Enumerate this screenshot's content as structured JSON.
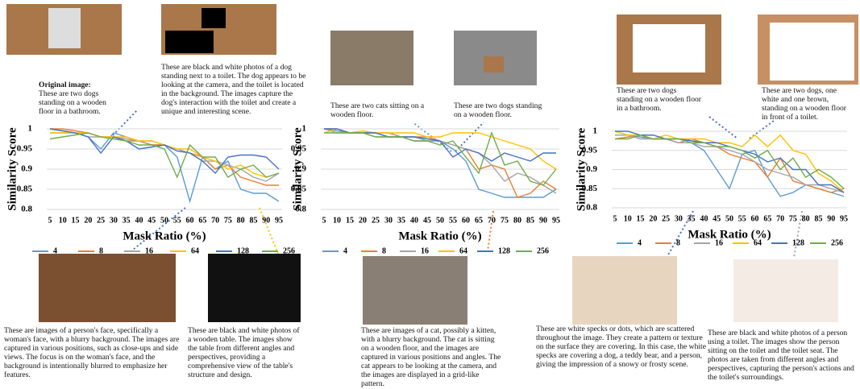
{
  "chart_data": [
    {
      "type": "line",
      "x_label": "Mask Ratio (%)",
      "y_label": "Similarity Score",
      "categories": [
        5,
        10,
        15,
        20,
        25,
        30,
        35,
        40,
        45,
        50,
        55,
        60,
        65,
        70,
        75,
        80,
        85,
        90,
        95
      ],
      "ylim": [
        0.8,
        1
      ],
      "yticks": [
        0.8,
        0.85,
        0.9,
        0.95,
        1
      ],
      "grid": true,
      "series": [
        {
          "name": "4",
          "color": "#5b9bd5",
          "values": [
            1,
            0.995,
            0.99,
            0.98,
            0.95,
            0.99,
            0.98,
            0.97,
            0.96,
            0.96,
            0.93,
            0.82,
            0.93,
            0.9,
            0.92,
            0.85,
            0.84,
            0.84,
            0.82
          ]
        },
        {
          "name": "8",
          "color": "#ed7d31",
          "values": [
            1,
            1,
            0.995,
            0.99,
            0.98,
            0.98,
            0.97,
            0.97,
            0.96,
            0.96,
            0.95,
            0.94,
            0.93,
            0.9,
            0.91,
            0.88,
            0.87,
            0.86,
            0.86
          ]
        },
        {
          "name": "16",
          "color": "#a5a5a5",
          "values": [
            0.99,
            0.99,
            0.99,
            0.98,
            0.98,
            0.98,
            0.975,
            0.97,
            0.97,
            0.96,
            0.95,
            0.94,
            0.92,
            0.92,
            0.91,
            0.9,
            0.88,
            0.87,
            0.89
          ]
        },
        {
          "name": "64",
          "color": "#ffc000",
          "values": [
            0.99,
            0.99,
            0.99,
            0.99,
            0.98,
            0.98,
            0.98,
            0.97,
            0.97,
            0.96,
            0.95,
            0.95,
            0.93,
            0.92,
            0.9,
            0.91,
            0.89,
            0.88,
            0.89
          ]
        },
        {
          "name": "128",
          "color": "#4472c4",
          "values": [
            1,
            0.995,
            0.99,
            0.98,
            0.94,
            0.98,
            0.97,
            0.95,
            0.955,
            0.96,
            0.945,
            0.94,
            0.92,
            0.89,
            0.93,
            0.935,
            0.935,
            0.93,
            0.9
          ]
        },
        {
          "name": "256",
          "color": "#70ad47",
          "values": [
            0.975,
            0.98,
            0.985,
            0.99,
            0.98,
            0.975,
            0.97,
            0.96,
            0.96,
            0.95,
            0.88,
            0.96,
            0.93,
            0.93,
            0.88,
            0.9,
            0.91,
            0.88,
            0.89
          ]
        }
      ],
      "annotations": [
        "Original image:",
        "These are two dogs standing on a wooden floor in a bathroom.",
        "These are black and white photos of a dog standing next to a toilet. The dog appears to be looking at the camera, and the toilet is located in the background. The images capture the dog's interaction with the toilet and create a unique and interesting scene.",
        "These are images of a person's face, specifically a woman's face, with a blurry background. The images are captured in various positions, such as close-ups and side views. The focus is on the woman's face, and the background is intentionally blurred to emphasize her features.",
        "These are black and white photos of a wooden table. The images show the table from different angles and perspectives, providing a comprehensive view of the table's structure and design."
      ]
    },
    {
      "type": "line",
      "x_label": "Mask Ratio (%)",
      "y_label": "Similarity Score",
      "categories": [
        5,
        10,
        15,
        20,
        25,
        30,
        35,
        40,
        45,
        50,
        55,
        60,
        65,
        70,
        75,
        80,
        85,
        90,
        95
      ],
      "ylim": [
        0.8,
        1
      ],
      "yticks": [
        0.8,
        0.85,
        0.9,
        0.95,
        1
      ],
      "grid": true,
      "series": [
        {
          "name": "4",
          "color": "#5b9bd5",
          "values": [
            1,
            0.995,
            0.99,
            0.99,
            0.99,
            0.98,
            0.98,
            0.97,
            0.97,
            0.97,
            0.95,
            0.92,
            0.85,
            0.84,
            0.83,
            0.83,
            0.83,
            0.83,
            0.85
          ]
        },
        {
          "name": "8",
          "color": "#ed7d31",
          "values": [
            1,
            1,
            0.99,
            0.99,
            0.99,
            0.99,
            0.98,
            0.98,
            0.98,
            0.97,
            0.96,
            0.95,
            0.9,
            0.91,
            0.9,
            0.83,
            0.84,
            0.87,
            0.85
          ]
        },
        {
          "name": "16",
          "color": "#a5a5a5",
          "values": [
            1,
            0.99,
            0.99,
            0.99,
            0.98,
            0.98,
            0.98,
            0.98,
            0.97,
            0.97,
            0.96,
            0.95,
            0.94,
            0.91,
            0.87,
            0.89,
            0.88,
            0.86,
            0.84
          ]
        },
        {
          "name": "64",
          "color": "#ffc000",
          "values": [
            0.99,
            1,
            0.99,
            0.995,
            0.99,
            0.99,
            0.99,
            0.99,
            0.98,
            0.98,
            0.99,
            0.99,
            0.99,
            0.98,
            0.97,
            0.96,
            0.95,
            0.92,
            0.9
          ]
        },
        {
          "name": "128",
          "color": "#4472c4",
          "values": [
            1,
            1,
            0.99,
            0.99,
            0.99,
            0.98,
            0.98,
            0.98,
            0.975,
            0.97,
            0.93,
            0.95,
            0.94,
            0.92,
            0.94,
            0.93,
            0.92,
            0.94,
            0.94
          ]
        },
        {
          "name": "256",
          "color": "#70ad47",
          "values": [
            0.99,
            0.99,
            0.99,
            0.99,
            0.98,
            0.98,
            0.98,
            0.97,
            0.97,
            0.96,
            0.97,
            0.93,
            0.89,
            0.99,
            0.91,
            0.92,
            0.87,
            0.86,
            0.9
          ]
        }
      ],
      "annotations": [
        "These are two cats sitting on a wooden floor.",
        "These are two dogs standing on a wooden floor.",
        "These are images of a cat, possibly a kitten, with a blurry background. The cat is sitting on a wooden floor, and the images are captured in various positions and angles. The cat appears to be looking at the camera, and the images are displayed in a grid-like pattern."
      ]
    },
    {
      "type": "line",
      "x_label": "Mask Ratio (%)",
      "y_label": "Similarity Score",
      "categories": [
        5,
        10,
        15,
        20,
        25,
        30,
        35,
        40,
        45,
        50,
        55,
        60,
        65,
        70,
        75,
        80,
        85,
        90,
        95
      ],
      "ylim": [
        0.8,
        1
      ],
      "yticks": [
        0.8,
        0.85,
        0.9,
        0.95,
        1
      ],
      "grid": true,
      "series": [
        {
          "name": "4",
          "color": "#5b9bd5",
          "values": [
            0.99,
            0.99,
            0.985,
            0.98,
            0.98,
            0.97,
            0.97,
            0.95,
            0.9,
            0.85,
            0.94,
            0.95,
            0.88,
            0.83,
            0.84,
            0.86,
            0.85,
            0.84,
            0.83
          ]
        },
        {
          "name": "8",
          "color": "#ed7d31",
          "values": [
            0.98,
            0.985,
            0.99,
            0.98,
            0.98,
            0.97,
            0.98,
            0.97,
            0.96,
            0.94,
            0.93,
            0.92,
            0.88,
            0.93,
            0.87,
            0.86,
            0.85,
            0.84,
            0.85
          ]
        },
        {
          "name": "16",
          "color": "#a5a5a5",
          "values": [
            0.99,
            0.99,
            0.98,
            0.98,
            0.98,
            0.97,
            0.97,
            0.96,
            0.96,
            0.95,
            0.94,
            0.92,
            0.9,
            0.89,
            0.88,
            0.86,
            0.86,
            0.85,
            0.84
          ]
        },
        {
          "name": "64",
          "color": "#ffc000",
          "values": [
            1,
            0.99,
            0.99,
            0.98,
            0.99,
            0.98,
            0.98,
            0.98,
            0.97,
            0.97,
            0.96,
            0.99,
            0.96,
            0.99,
            0.95,
            0.94,
            0.89,
            0.87,
            0.84
          ]
        },
        {
          "name": "128",
          "color": "#4472c4",
          "values": [
            1,
            1,
            0.99,
            0.99,
            0.98,
            0.98,
            0.975,
            0.97,
            0.97,
            0.96,
            0.95,
            0.94,
            0.92,
            0.93,
            0.9,
            0.9,
            0.86,
            0.86,
            0.84
          ]
        },
        {
          "name": "256",
          "color": "#70ad47",
          "values": [
            0.98,
            0.98,
            0.99,
            0.98,
            0.98,
            0.98,
            0.97,
            0.97,
            0.96,
            0.96,
            0.95,
            0.93,
            0.95,
            0.9,
            0.93,
            0.88,
            0.9,
            0.88,
            0.85
          ]
        }
      ],
      "annotations": [
        "These are two dogs standing on a wooden floor in a bathroom.",
        "These are two dogs, one white and one brown, standing on a wooden floor in front of a toilet.",
        "These are white specks or dots, which are scattered throughout the image. They create a pattern or texture on the surface they are covering. In this case, the white specks are covering a dog, a teddy bear, and a person, giving the impression of a snowy or frosty scene.",
        "These are black and white photos of a person using a toilet. The images show the person sitting on the toilet and the toilet seat. The photos are taken from different angles and perspectives, capturing the person's actions and the toilet's surroundings."
      ]
    }
  ]
}
